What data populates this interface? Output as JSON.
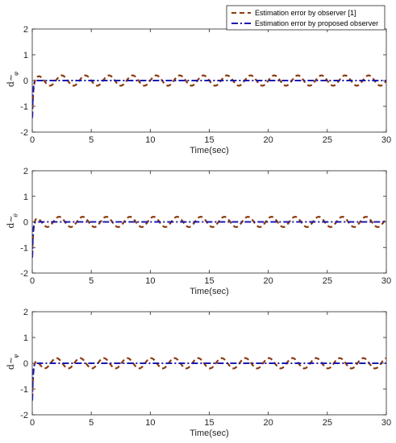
{
  "legend": {
    "entries": [
      {
        "label": "Estimation error by observer [1]",
        "color": "#8B3A0E",
        "style": "dashed"
      },
      {
        "label": "Estimation error by proposed observer",
        "color": "#1A1AB0",
        "style": "dashdot"
      }
    ],
    "placement": "top-right"
  },
  "chart_data": [
    {
      "type": "line",
      "ylabel": "d~",
      "ylabel_sub": "φ",
      "xlabel": "Time(sec)",
      "xlim": [
        0,
        30
      ],
      "ylim": [
        -2,
        2
      ],
      "xticks": [
        0,
        5,
        10,
        15,
        20,
        25,
        30
      ],
      "yticks": [
        -2,
        -1,
        0,
        1,
        2
      ],
      "grid": false,
      "series": [
        {
          "name": "Estimation error by observer [1]",
          "color": "#8B3A0E",
          "x": [
            0,
            0.05,
            0.15,
            0.3,
            0.5,
            1.0,
            1.5,
            2.0,
            2.5,
            3.0,
            4.0,
            5.0,
            6.0,
            7.0,
            8.0,
            9.0,
            10.0,
            11.0,
            12.0,
            13.0,
            14.0,
            15.0,
            16.0,
            17.0,
            18.0,
            19.0,
            20.0,
            21.0,
            22.0,
            23.0,
            24.0,
            25.0,
            26.0,
            27.0,
            28.0,
            29.0,
            30.0
          ],
          "amplitude": 0.2,
          "period": 2.0,
          "initial": -1.4
        },
        {
          "name": "Estimation error by proposed observer",
          "color": "#1A1AB0",
          "initial": -1.45,
          "steady": 0.0
        }
      ]
    },
    {
      "type": "line",
      "ylabel": "d~",
      "ylabel_sub": "θ",
      "xlabel": "Time(sec)",
      "xlim": [
        0,
        30
      ],
      "ylim": [
        -2,
        2
      ],
      "xticks": [
        0,
        5,
        10,
        15,
        20,
        25,
        30
      ],
      "yticks": [
        -2,
        -1,
        0,
        1,
        2
      ],
      "grid": false,
      "series": [
        {
          "name": "Estimation error by observer [1]",
          "color": "#8B3A0E",
          "amplitude": 0.2,
          "period": 2.0,
          "initial": -1.3
        },
        {
          "name": "Estimation error by proposed observer",
          "color": "#1A1AB0",
          "initial": -1.4,
          "steady": 0.0
        }
      ]
    },
    {
      "type": "line",
      "ylabel": "d~",
      "ylabel_sub": "ψ",
      "xlabel": "Time(sec)",
      "xlim": [
        0,
        30
      ],
      "ylim": [
        -2,
        2
      ],
      "xticks": [
        0,
        5,
        10,
        15,
        20,
        25,
        30
      ],
      "yticks": [
        -2,
        -1,
        0,
        1,
        2
      ],
      "grid": false,
      "series": [
        {
          "name": "Estimation error by observer [1]",
          "color": "#8B3A0E",
          "amplitude": 0.2,
          "period": 2.0,
          "initial": -1.35
        },
        {
          "name": "Estimation error by proposed observer",
          "color": "#1A1AB0",
          "initial": -1.45,
          "steady": 0.0
        }
      ]
    }
  ]
}
